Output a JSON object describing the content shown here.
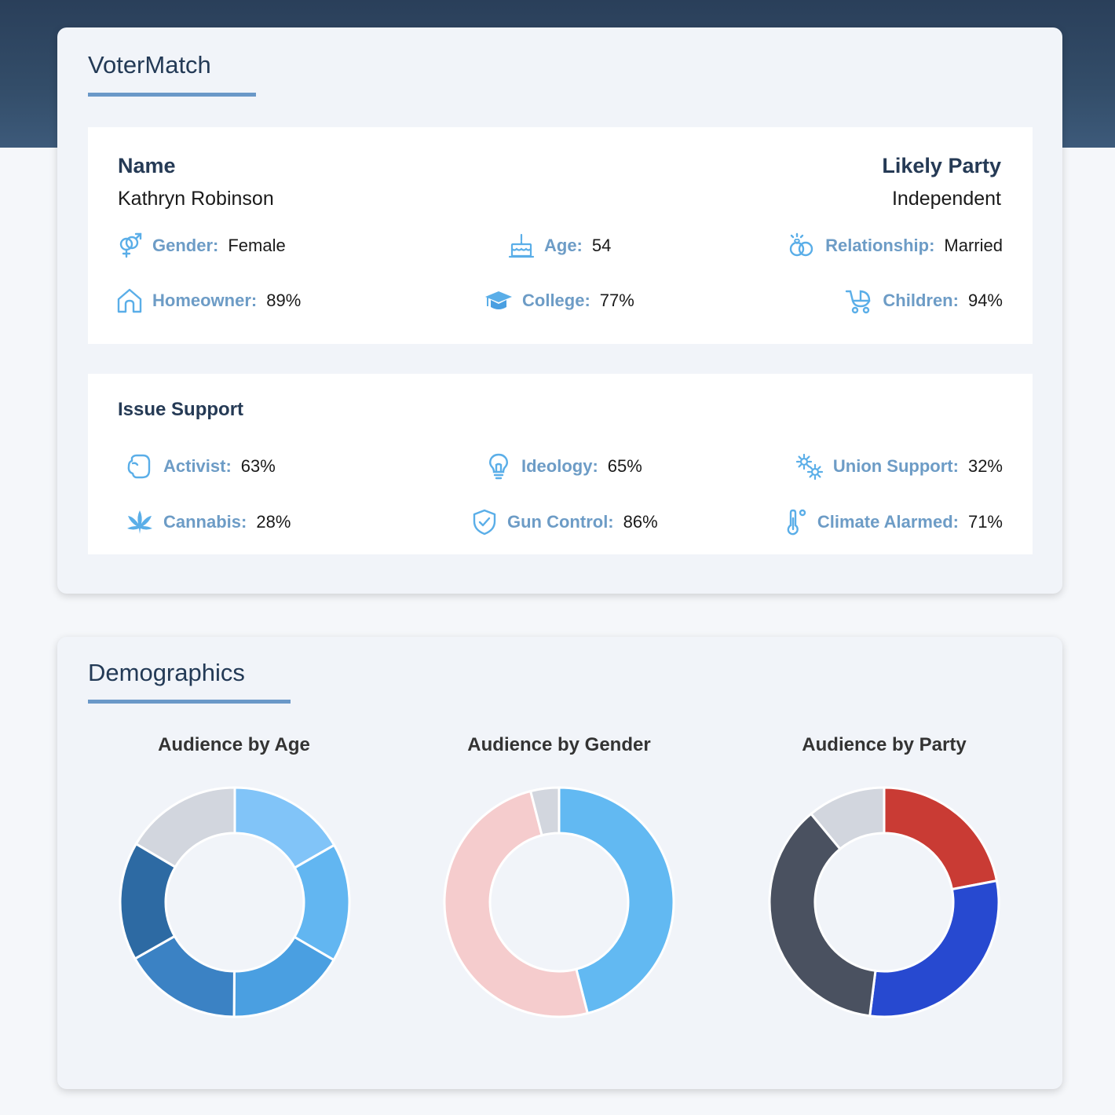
{
  "app": {
    "title": "VoterMatch"
  },
  "profile": {
    "name_label": "Name",
    "name_value": "Kathryn Robinson",
    "party_label": "Likely Party",
    "party_value": "Independent",
    "attributes": [
      {
        "icon": "gender-icon",
        "label": "Gender:",
        "value": "Female"
      },
      {
        "icon": "birthday-cake-icon",
        "label": "Age:",
        "value": "54"
      },
      {
        "icon": "rings-icon",
        "label": "Relationship:",
        "value": "Married"
      },
      {
        "icon": "home-icon",
        "label": "Homeowner:",
        "value": "89%"
      },
      {
        "icon": "graduation-cap-icon",
        "label": "College:",
        "value": "77%"
      },
      {
        "icon": "baby-carriage-icon",
        "label": "Children:",
        "value": "94%"
      }
    ]
  },
  "issues": {
    "title": "Issue Support",
    "items": [
      {
        "icon": "fist-icon",
        "label": "Activist:",
        "value": "63%"
      },
      {
        "icon": "lightbulb-icon",
        "label": "Ideology:",
        "value": "65%"
      },
      {
        "icon": "gears-icon",
        "label": "Union Support:",
        "value": "32%"
      },
      {
        "icon": "cannabis-leaf-icon",
        "label": "Cannabis:",
        "value": "28%"
      },
      {
        "icon": "shield-check-icon",
        "label": "Gun Control:",
        "value": "86%"
      },
      {
        "icon": "thermometer-icon",
        "label": "Climate Alarmed:",
        "value": "71%"
      }
    ]
  },
  "demographics": {
    "title": "Demographics"
  },
  "colors": {
    "accent": "#6a98c8",
    "label": "#6d9cc6",
    "heading": "#253a55",
    "icon": "#5aaee8"
  },
  "chart_data": [
    {
      "type": "pie",
      "title": "Audience by Age",
      "values": [
        16.7,
        16.7,
        16.7,
        16.7,
        16.7,
        16.5
      ],
      "colors": [
        "#81c4f8",
        "#62b6f1",
        "#4a9fe1",
        "#3b82c4",
        "#2d6aa3",
        "#d2d6de"
      ]
    },
    {
      "type": "pie",
      "title": "Audience by Gender",
      "values": [
        46,
        50,
        4
      ],
      "colors": [
        "#62b9f2",
        "#f5cccd",
        "#d2d6de"
      ]
    },
    {
      "type": "pie",
      "title": "Audience by Party",
      "values": [
        22,
        30,
        37,
        11
      ],
      "colors": [
        "#c93b34",
        "#2749d0",
        "#4a5160",
        "#d2d6de"
      ]
    }
  ]
}
